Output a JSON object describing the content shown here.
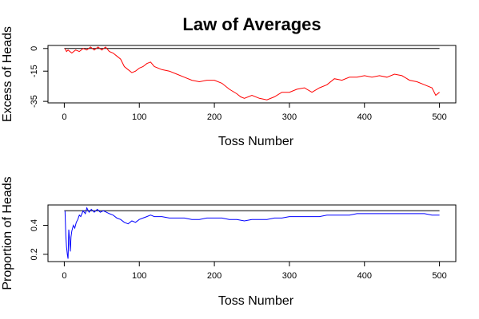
{
  "title": "Law of Averages",
  "colors": {
    "excess": "#ff0000",
    "proportion": "#0000ff",
    "reference": "#000000"
  },
  "chart_data": [
    {
      "type": "line",
      "name": "excess",
      "title": "",
      "xlabel": "Toss Number",
      "ylabel": "Excess of Heads",
      "xlim": [
        0,
        500
      ],
      "ylim": [
        -36,
        2
      ],
      "xticks": [
        0,
        100,
        200,
        300,
        400,
        500
      ],
      "yticks": [
        0,
        -15,
        -35
      ],
      "reference_y": 0,
      "grid": false,
      "x": [
        1,
        3,
        5,
        10,
        15,
        20,
        25,
        30,
        35,
        40,
        45,
        50,
        55,
        60,
        65,
        70,
        75,
        80,
        85,
        90,
        95,
        100,
        105,
        110,
        115,
        120,
        130,
        140,
        150,
        160,
        170,
        180,
        190,
        200,
        210,
        220,
        230,
        235,
        240,
        250,
        260,
        270,
        280,
        290,
        300,
        310,
        320,
        330,
        340,
        350,
        360,
        370,
        380,
        390,
        400,
        410,
        420,
        430,
        440,
        450,
        460,
        470,
        480,
        490,
        495,
        500
      ],
      "y": [
        0,
        -2,
        -1,
        -3,
        -1,
        -2,
        0,
        -1,
        1,
        -1,
        1,
        -1,
        1,
        -2,
        -3,
        -5,
        -7,
        -12,
        -14,
        -16,
        -15,
        -13,
        -12,
        -10,
        -9,
        -12,
        -14,
        -15,
        -17,
        -19,
        -21,
        -22,
        -21,
        -21,
        -23,
        -27,
        -30,
        -32,
        -33,
        -31,
        -33,
        -34,
        -32,
        -29,
        -29,
        -27,
        -26,
        -29,
        -26,
        -24,
        -20,
        -21,
        -19,
        -19,
        -18,
        -19,
        -18,
        -19,
        -17,
        -18,
        -21,
        -22,
        -24,
        -26,
        -31,
        -29
      ]
    },
    {
      "type": "line",
      "name": "proportion",
      "title": "",
      "xlabel": "Toss Number",
      "ylabel": "Proportion of Heads",
      "xlim": [
        0,
        500
      ],
      "ylim": [
        0.15,
        0.54
      ],
      "xticks": [
        0,
        100,
        200,
        300,
        400,
        500
      ],
      "yticks": [
        0.2,
        0.4
      ],
      "reference_y": 0.5,
      "grid": false,
      "x": [
        1,
        2,
        3,
        4,
        5,
        6,
        7,
        8,
        9,
        10,
        12,
        14,
        16,
        18,
        20,
        22,
        25,
        28,
        30,
        33,
        36,
        40,
        44,
        48,
        52,
        56,
        60,
        65,
        70,
        75,
        80,
        85,
        90,
        95,
        100,
        105,
        110,
        115,
        120,
        130,
        140,
        150,
        160,
        170,
        180,
        190,
        200,
        210,
        220,
        230,
        240,
        250,
        260,
        270,
        280,
        290,
        300,
        310,
        320,
        330,
        340,
        350,
        360,
        370,
        380,
        390,
        400,
        410,
        420,
        430,
        440,
        450,
        460,
        470,
        480,
        490,
        500
      ],
      "y": [
        0.5,
        0.33,
        0.25,
        0.2,
        0.17,
        0.37,
        0.3,
        0.22,
        0.32,
        0.36,
        0.4,
        0.38,
        0.42,
        0.44,
        0.47,
        0.46,
        0.5,
        0.48,
        0.52,
        0.49,
        0.51,
        0.49,
        0.51,
        0.49,
        0.5,
        0.49,
        0.48,
        0.47,
        0.45,
        0.44,
        0.42,
        0.41,
        0.43,
        0.42,
        0.44,
        0.45,
        0.46,
        0.47,
        0.46,
        0.46,
        0.45,
        0.45,
        0.45,
        0.44,
        0.44,
        0.45,
        0.45,
        0.45,
        0.44,
        0.44,
        0.43,
        0.44,
        0.44,
        0.44,
        0.45,
        0.45,
        0.46,
        0.46,
        0.46,
        0.46,
        0.46,
        0.47,
        0.47,
        0.47,
        0.47,
        0.48,
        0.48,
        0.48,
        0.48,
        0.48,
        0.48,
        0.48,
        0.48,
        0.48,
        0.48,
        0.47,
        0.47
      ]
    }
  ]
}
